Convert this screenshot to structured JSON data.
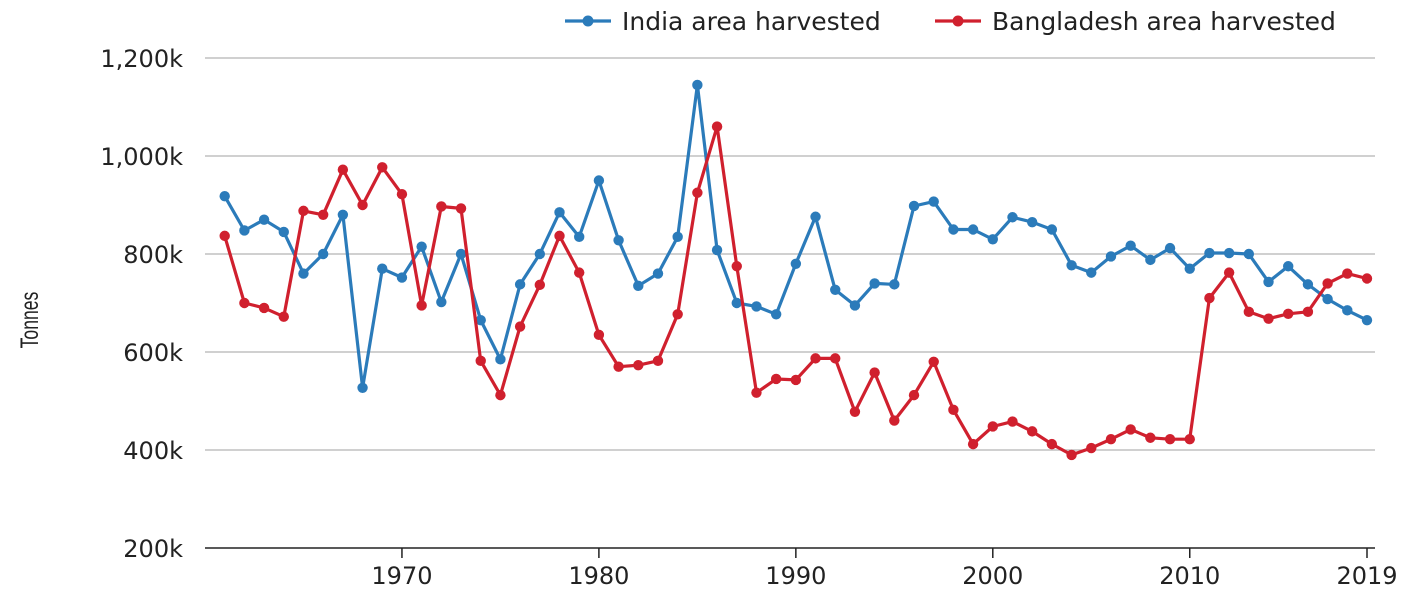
{
  "chart_data": {
    "type": "line",
    "title": "",
    "xlabel": "",
    "ylabel": "Tonnes",
    "xlim": [
      1960,
      2019
    ],
    "ylim": [
      200000,
      1200000
    ],
    "x_ticks": [
      1970,
      1980,
      1990,
      2000,
      2010,
      2019
    ],
    "x_tick_labels": [
      "1970",
      "1980",
      "1990",
      "2000",
      "2010",
      "2019"
    ],
    "y_ticks": [
      200000,
      400000,
      600000,
      800000,
      1000000,
      1200000
    ],
    "y_tick_labels": [
      "200k",
      "400k",
      "600k",
      "800k",
      "1,000k",
      "1,200k"
    ],
    "grid": "horizontal",
    "legend_position": "top-right",
    "x": [
      1961,
      1962,
      1963,
      1964,
      1965,
      1966,
      1967,
      1968,
      1969,
      1970,
      1971,
      1972,
      1973,
      1974,
      1975,
      1976,
      1977,
      1978,
      1979,
      1980,
      1981,
      1982,
      1983,
      1984,
      1985,
      1986,
      1987,
      1988,
      1989,
      1990,
      1991,
      1992,
      1993,
      1994,
      1995,
      1996,
      1997,
      1998,
      1999,
      2000,
      2001,
      2002,
      2003,
      2004,
      2005,
      2006,
      2007,
      2008,
      2009,
      2010,
      2011,
      2012,
      2013,
      2014,
      2015,
      2016,
      2017,
      2018,
      2019
    ],
    "series": [
      {
        "name": "India area harvested",
        "color": "#2b7bba",
        "values": [
          918000,
          848000,
          870000,
          845000,
          760000,
          800000,
          880000,
          527000,
          770000,
          752000,
          815000,
          702000,
          800000,
          665000,
          585000,
          738000,
          800000,
          885000,
          835000,
          950000,
          828000,
          735000,
          760000,
          835000,
          1145000,
          808000,
          700000,
          693000,
          677000,
          780000,
          876000,
          727000,
          695000,
          740000,
          738000,
          898000,
          907000,
          850000,
          850000,
          830000,
          875000,
          865000,
          850000,
          777000,
          762000,
          795000,
          817000,
          788000,
          812000,
          770000,
          802000,
          802000,
          800000,
          743000,
          775000,
          738000,
          708000,
          685000,
          665000
        ]
      },
      {
        "name": "Bangladesh area harvested",
        "color": "#d0202e",
        "values": [
          837000,
          700000,
          690000,
          672000,
          888000,
          880000,
          972000,
          900000,
          977000,
          922000,
          695000,
          897000,
          893000,
          582000,
          512000,
          652000,
          737000,
          837000,
          762000,
          635000,
          570000,
          573000,
          582000,
          677000,
          925000,
          1060000,
          775000,
          517000,
          545000,
          543000,
          587000,
          587000,
          478000,
          558000,
          460000,
          512000,
          580000,
          482000,
          412000,
          448000,
          458000,
          438000,
          412000,
          390000,
          404000,
          422000,
          442000,
          425000,
          422000,
          422000,
          710000,
          762000,
          682000,
          668000,
          678000,
          682000,
          740000,
          760000,
          750000
        ]
      }
    ]
  }
}
